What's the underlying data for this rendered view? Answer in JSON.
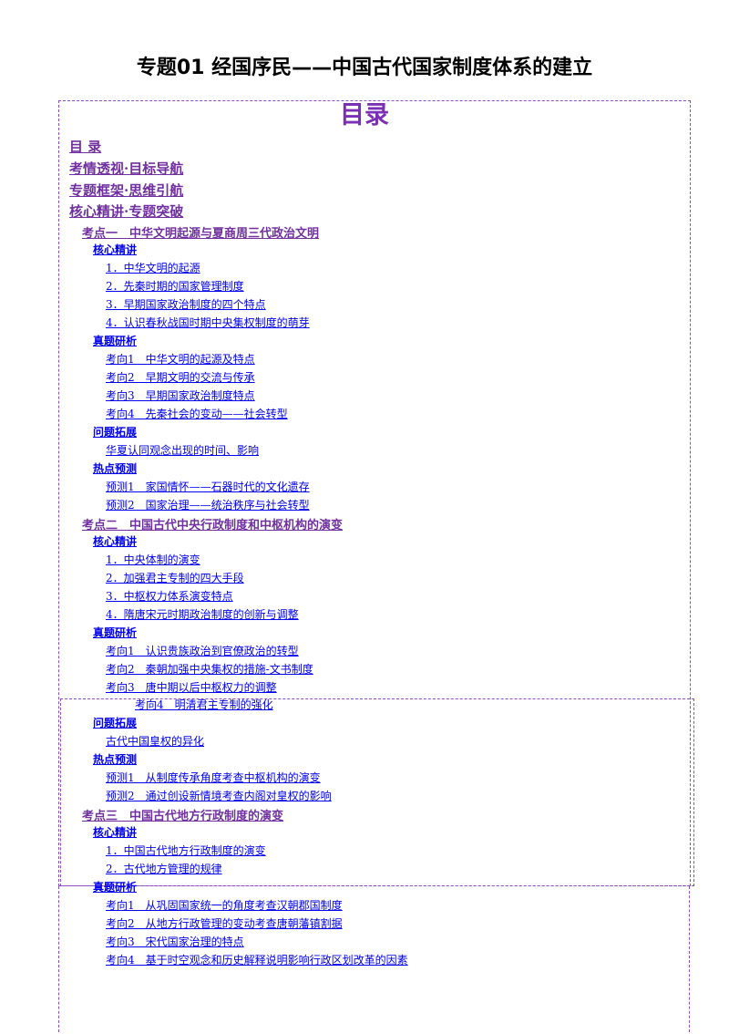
{
  "document": {
    "title": "专题01  经国序民——中国古代国家制度体系的建立",
    "toc_heading": "目录"
  },
  "toc": {
    "top": [
      "目 录",
      "考情透视·目标导航",
      "专题框架·思维引航",
      "核心精讲·专题突破"
    ],
    "point1": {
      "title": "考点一　中华文明起源与夏商周三代政治文明",
      "core": "核心精讲",
      "core_items": [
        "1．中华文明的起源",
        "2．先秦时期的国家管理制度",
        "3．早期国家政治制度的四个特点",
        "4．认识春秋战国时期中央集权制度的萌芽"
      ],
      "zhenti": "真题研析",
      "zhenti_items": [
        "考向1　中华文明的起源及特点",
        "考向2　早期文明的交流与传承",
        "考向3　早期国家政治制度特点",
        "考向4　先秦社会的变动——社会转型"
      ],
      "wenti": "问题拓展",
      "wenti_items": [
        "华夏认同观念出现的时间、影响"
      ],
      "redian": "热点预测",
      "redian_items": [
        "预测1　家国情怀——石器时代的文化遗存",
        "预测2　国家治理——统治秩序与社会转型"
      ]
    },
    "point2": {
      "title": "考点二　中国古代中央行政制度和中枢机构的演变",
      "core": "核心精讲",
      "core_items": [
        "1．中央体制的演变",
        "2．加强君主专制的四大手段",
        "3．中枢权力体系演变特点",
        "4．隋唐宋元时期政治制度的创新与调整"
      ],
      "zhenti": "真题研析",
      "zhenti_items": [
        "考向1　认识贵族政治到官僚政治的转型",
        "考向2　秦朝加强中央集权的措施-文书制度",
        "考向3　唐中期以后中枢权力的调整",
        "考向4　明清君主专制的强化"
      ],
      "wenti": "问题拓展",
      "wenti_items": [
        "古代中国皇权的异化"
      ],
      "redian": "热点预测",
      "redian_items": [
        "预测1　从制度传承角度考查中枢机构的演变",
        "预测2　通过创设新情境考查内阁对皇权的影响"
      ]
    },
    "point3": {
      "title": "考点三　中国古代地方行政制度的演变",
      "core": "核心精讲",
      "core_items": [
        "1．中国古代地方行政制度的演变",
        "2．古代地方管理的规律"
      ],
      "zhenti": "真题研析",
      "zhenti_items": [
        "考向1　从巩固国家统一的角度考查汉朝郡国制度",
        "考向2　从地方行政管理的变动考查唐朝藩镇割据",
        "考向3　宋代国家治理的特点",
        "考向4　基于时空观念和历史解释说明影响行政区划改革的因素"
      ]
    }
  },
  "colors": {
    "accent": "#7030a0",
    "link": "#0000ee",
    "border": "#8a4fc0"
  }
}
